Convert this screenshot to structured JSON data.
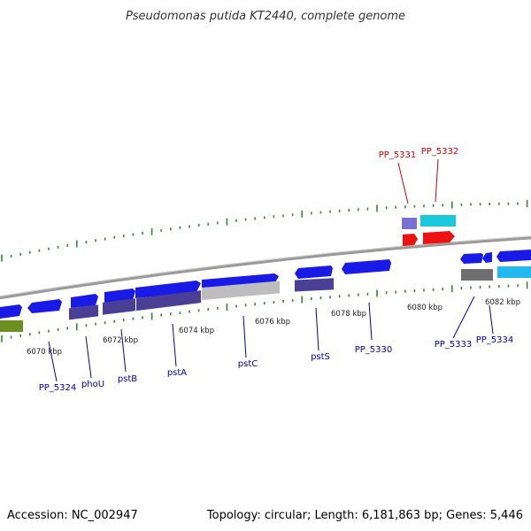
{
  "title": "Pseudomonas putida KT2440, complete genome",
  "accession": "Accession: NC_002947",
  "topology": "Topology: circular; Length: 6,181,863 bp; Genes: 5,446",
  "kbp_labels": [
    "6070 kbp",
    "6072 kbp",
    "6074 kbp",
    "6076 kbp",
    "6078 kbp",
    "6080 kbp",
    "6082 kbp"
  ],
  "colors": {
    "gene_blue": "#1a1ae6",
    "gene_purple": "#4a3f94",
    "gene_violet": "#7b6fd6",
    "gene_gray": "#bdbdbd",
    "gene_darkgray": "#6e6e6e",
    "gene_red": "#ee1111",
    "gene_cyan": "#19c9d9",
    "gene_lightblue": "#22b8f0",
    "gene_olive": "#6d8f22",
    "backbone": "#8a8a8a",
    "tick_green": "#2e8b2e",
    "label_blue": "#0000aa",
    "label_red": "#cc0000"
  },
  "gene_labels": [
    {
      "text": "PP_5331",
      "color": "red"
    },
    {
      "text": "PP_5332",
      "color": "red"
    },
    {
      "text": "PP_5324",
      "color": "blue"
    },
    {
      "text": "phoU",
      "color": "blue"
    },
    {
      "text": "pstB",
      "color": "blue"
    },
    {
      "text": "pstA",
      "color": "blue"
    },
    {
      "text": "pstC",
      "color": "blue"
    },
    {
      "text": "pstS",
      "color": "blue"
    },
    {
      "text": "PP_5330",
      "color": "blue"
    },
    {
      "text": "PP_5333",
      "color": "blue"
    },
    {
      "text": "PP_5334",
      "color": "blue"
    }
  ]
}
